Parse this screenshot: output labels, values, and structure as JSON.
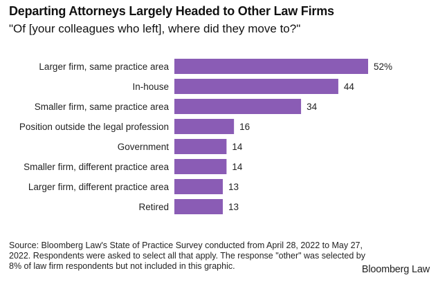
{
  "title": "Departing Attorneys Largely Headed to Other Law Firms",
  "subtitle": "\"Of [your colleagues who left], where did they move to?\"",
  "chart_data": {
    "type": "bar",
    "orientation": "horizontal",
    "categories": [
      "Larger firm, same practice area",
      "In-house",
      "Smaller firm, same practice area",
      "Position outside the legal profession",
      "Government",
      "Smaller firm, different practice area",
      "Larger firm, different practice area",
      "Retired"
    ],
    "values": [
      52,
      44,
      34,
      16,
      14,
      14,
      13,
      13
    ],
    "value_labels": [
      "52%",
      "44",
      "34",
      "16",
      "14",
      "14",
      "13",
      "13"
    ],
    "xlim": [
      0,
      52
    ],
    "grid": false,
    "legend": "none",
    "bar_color": "#8a5cb5"
  },
  "source": "Source: Bloomberg Law's State of Practice Survey conducted from April 28, 2022 to May 27, 2022. Respondents were asked to select all that apply. The response \"other\" was selected by 8% of law firm respondents but not included in this graphic.",
  "brand": "Bloomberg Law"
}
